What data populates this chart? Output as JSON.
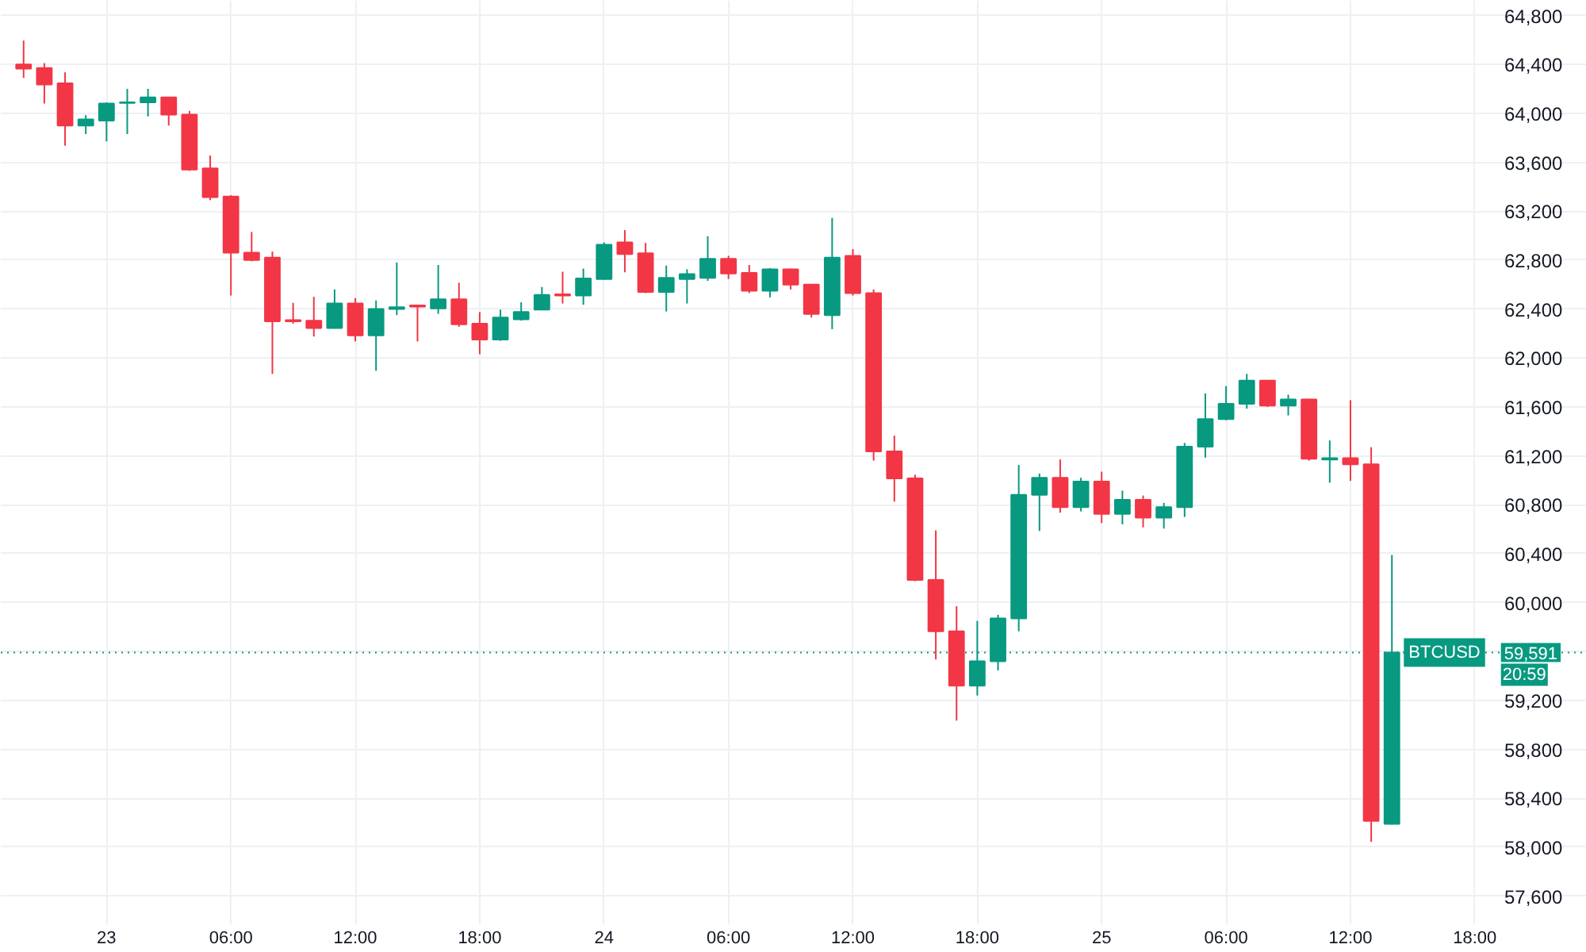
{
  "chart_data": {
    "type": "candlestick",
    "categories": [
      null,
      null,
      null,
      null,
      "23",
      null,
      null,
      null,
      null,
      null,
      "06:00",
      null,
      null,
      null,
      null,
      null,
      "12:00",
      null,
      null,
      null,
      null,
      null,
      "18:00",
      null,
      null,
      null,
      null,
      null,
      "24",
      null,
      null,
      null,
      null,
      null,
      "06:00",
      null,
      null,
      null,
      null,
      null,
      "12:00",
      null,
      null,
      null,
      null,
      null,
      "18:00",
      null,
      null,
      null,
      null,
      null,
      "25",
      null,
      null,
      null,
      null,
      null,
      "06:00",
      null,
      null,
      null,
      null,
      null,
      "12:00",
      null,
      null,
      null,
      null,
      null,
      "18:00"
    ],
    "ohlc": [
      [
        64400,
        64595,
        64290,
        64365
      ],
      [
        64370,
        64410,
        64080,
        64235
      ],
      [
        64245,
        64335,
        63735,
        63900
      ],
      [
        63900,
        63985,
        63830,
        63950
      ],
      [
        63940,
        64090,
        63770,
        64080
      ],
      [
        64085,
        64200,
        63830,
        64090
      ],
      [
        64090,
        64200,
        63975,
        64130
      ],
      [
        64130,
        64135,
        63900,
        63990
      ],
      [
        63990,
        64020,
        63530,
        63540
      ],
      [
        63550,
        63655,
        63290,
        63315
      ],
      [
        63320,
        63330,
        62510,
        62860
      ],
      [
        62860,
        63030,
        62790,
        62800
      ],
      [
        62820,
        62870,
        61870,
        62300
      ],
      [
        62310,
        62450,
        62280,
        62300
      ],
      [
        62305,
        62500,
        62175,
        62245
      ],
      [
        62245,
        62560,
        62240,
        62445
      ],
      [
        62445,
        62490,
        62135,
        62185
      ],
      [
        62185,
        62470,
        61895,
        62400
      ],
      [
        62400,
        62780,
        62350,
        62415
      ],
      [
        62430,
        62435,
        62135,
        62420
      ],
      [
        62405,
        62760,
        62360,
        62480
      ],
      [
        62480,
        62615,
        62255,
        62275
      ],
      [
        62280,
        62375,
        62030,
        62150
      ],
      [
        62150,
        62395,
        62140,
        62330
      ],
      [
        62315,
        62455,
        62305,
        62375
      ],
      [
        62395,
        62580,
        62390,
        62515
      ],
      [
        62520,
        62705,
        62445,
        62510
      ],
      [
        62510,
        62730,
        62435,
        62650
      ],
      [
        62645,
        62945,
        62640,
        62925
      ],
      [
        62945,
        63045,
        62700,
        62850
      ],
      [
        62855,
        62940,
        62530,
        62540
      ],
      [
        62540,
        62755,
        62380,
        62655
      ],
      [
        62645,
        62725,
        62445,
        62685
      ],
      [
        62655,
        62995,
        62630,
        62810
      ],
      [
        62810,
        62835,
        62645,
        62690
      ],
      [
        62695,
        62760,
        62530,
        62550
      ],
      [
        62550,
        62735,
        62495,
        62725
      ],
      [
        62725,
        62730,
        62560,
        62600
      ],
      [
        62600,
        62605,
        62330,
        62360
      ],
      [
        62350,
        63145,
        62235,
        62820
      ],
      [
        62835,
        62890,
        62510,
        62530
      ],
      [
        62530,
        62560,
        61160,
        61235
      ],
      [
        61235,
        61365,
        60825,
        61015
      ],
      [
        61015,
        61045,
        60175,
        60185
      ],
      [
        60185,
        60590,
        59535,
        59765
      ],
      [
        59765,
        59970,
        59035,
        59320
      ],
      [
        59320,
        59850,
        59240,
        59520
      ],
      [
        59520,
        59900,
        59445,
        59870
      ],
      [
        59870,
        61125,
        59765,
        60880
      ],
      [
        60880,
        61055,
        60585,
        61020
      ],
      [
        61020,
        61170,
        60735,
        60780
      ],
      [
        60780,
        61020,
        60745,
        60990
      ],
      [
        60990,
        61070,
        60650,
        60725
      ],
      [
        60725,
        60915,
        60640,
        60840
      ],
      [
        60840,
        60875,
        60615,
        60695
      ],
      [
        60695,
        60815,
        60605,
        60780
      ],
      [
        60780,
        61305,
        60700,
        61275
      ],
      [
        61275,
        61710,
        61185,
        61500
      ],
      [
        61500,
        61770,
        61490,
        61625
      ],
      [
        61625,
        61870,
        61585,
        61815
      ],
      [
        61815,
        61820,
        61600,
        61610
      ],
      [
        61610,
        61700,
        61530,
        61660
      ],
      [
        61660,
        61665,
        61160,
        61175
      ],
      [
        61170,
        61325,
        60980,
        61180
      ],
      [
        61180,
        61655,
        60995,
        61130
      ],
      [
        61130,
        61270,
        58045,
        58215
      ],
      [
        58190,
        60390,
        58185,
        59591
      ],
      null,
      null,
      null,
      null
    ],
    "colors": [
      "#f23645",
      "#f23645",
      "#f23645",
      "#089981",
      "#089981",
      "#089981",
      "#089981",
      "#f23645",
      "#f23645",
      "#f23645",
      "#f23645",
      "#f23645",
      "#f23645",
      "#f23645",
      "#f23645",
      "#089981",
      "#f23645",
      "#089981",
      "#089981",
      "#f23645",
      "#089981",
      "#f23645",
      "#f23645",
      "#089981",
      "#089981",
      "#089981",
      "#f23645",
      "#089981",
      "#089981",
      "#f23645",
      "#f23645",
      "#089981",
      "#089981",
      "#089981",
      "#f23645",
      "#f23645",
      "#089981",
      "#f23645",
      "#f23645",
      "#089981",
      "#f23645",
      "#f23645",
      "#f23645",
      "#f23645",
      "#f23645",
      "#f23645",
      "#089981",
      "#089981",
      "#089981",
      "#089981",
      "#f23645",
      "#089981",
      "#f23645",
      "#089981",
      "#f23645",
      "#089981",
      "#089981",
      "#089981",
      "#089981",
      "#089981",
      "#f23645",
      "#089981",
      "#f23645",
      "#089981",
      "#f23645",
      "#f23645",
      "#089981",
      null,
      null,
      null,
      null
    ],
    "ylim": [
      57370,
      64920
    ],
    "yticks": [
      {
        "value": 57600,
        "label": "57,600"
      },
      {
        "value": 58000,
        "label": "58,000"
      },
      {
        "value": 58400,
        "label": "58,400"
      },
      {
        "value": 58800,
        "label": "58,800"
      },
      {
        "value": 59200,
        "label": "59,200"
      },
      {
        "value": 59600,
        "label": null
      },
      {
        "value": 60000,
        "label": "60,000"
      },
      {
        "value": 60400,
        "label": "60,400"
      },
      {
        "value": 60800,
        "label": "60,800"
      },
      {
        "value": 61200,
        "label": "61,200"
      },
      {
        "value": 61600,
        "label": "61,600"
      },
      {
        "value": 62000,
        "label": "62,000"
      },
      {
        "value": 62400,
        "label": "62,400"
      },
      {
        "value": 62800,
        "label": "62,800"
      },
      {
        "value": 63200,
        "label": "63,200"
      },
      {
        "value": 63600,
        "label": "63,600"
      },
      {
        "value": 64000,
        "label": "64,000"
      },
      {
        "value": 64400,
        "label": "64,400"
      },
      {
        "value": 64800,
        "label": "64,800"
      }
    ],
    "grid": true,
    "ref_lines": [
      {
        "axis": "y",
        "value": 59591,
        "label": "BTCUSD",
        "color": "#089981",
        "line_style": "dotted"
      }
    ],
    "annotations": [
      {
        "text": "59,591",
        "y": 59591
      },
      "20:59"
    ]
  }
}
